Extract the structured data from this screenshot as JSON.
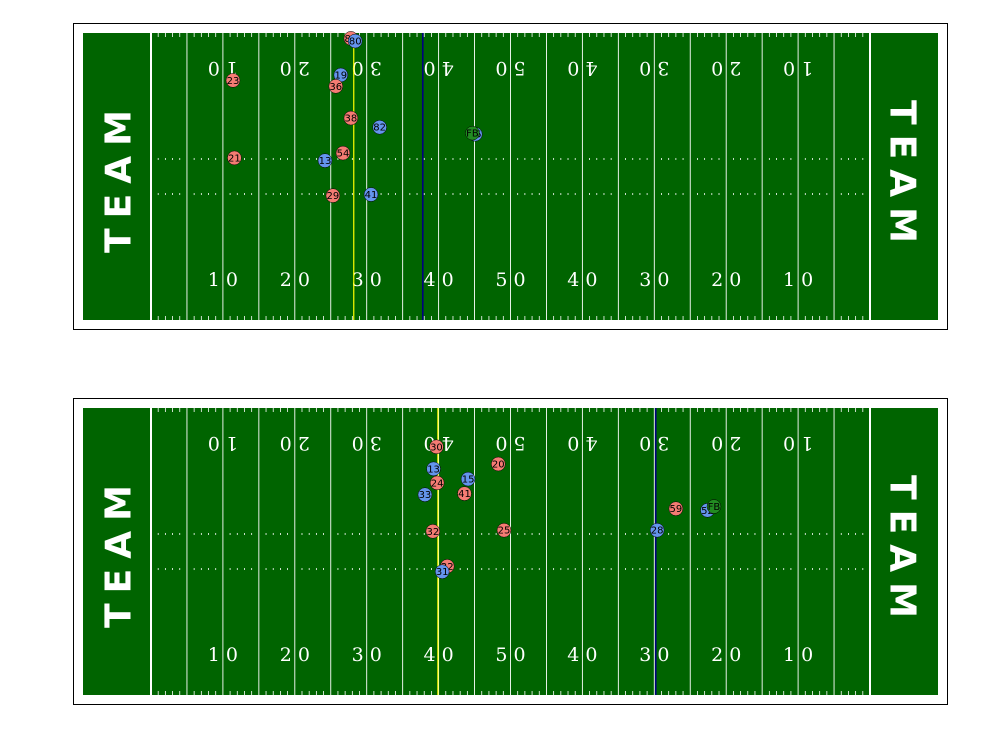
{
  "endzone_label": "TEAM",
  "colors": {
    "turf": "#006400",
    "lines": "#ffffff",
    "line_of_scrimmage": "#000080",
    "first_down": "#ffff00",
    "team_a": "#f47c73",
    "team_b": "#6495ed",
    "football": "#228b22"
  },
  "yard_numbers": [
    "1 0",
    "2 0",
    "3 0",
    "4 0",
    "5 0",
    "4 0",
    "3 0",
    "2 0",
    "1 0"
  ],
  "fields": [
    {
      "line_of_scrimmage": 37.8,
      "first_down": 28.2,
      "football": {
        "x": 44.7,
        "y": 18.6,
        "label": "FB"
      },
      "players": [
        {
          "team": "a",
          "jersey": "89",
          "x": 27.8,
          "y": 1.0
        },
        {
          "team": "b",
          "jersey": "80",
          "x": 28.4,
          "y": 1.5
        },
        {
          "team": "a",
          "jersey": "23",
          "x": 11.4,
          "y": 8.8
        },
        {
          "team": "b",
          "jersey": "19",
          "x": 26.4,
          "y": 7.8
        },
        {
          "team": "a",
          "jersey": "36",
          "x": 25.7,
          "y": 9.9
        },
        {
          "team": "a",
          "jersey": "38",
          "x": 27.8,
          "y": 15.8
        },
        {
          "team": "b",
          "jersey": "82",
          "x": 31.8,
          "y": 17.5
        },
        {
          "team": "b",
          "jersey": "15",
          "x": 45.1,
          "y": 18.8
        },
        {
          "team": "a",
          "jersey": "54",
          "x": 26.7,
          "y": 22.3
        },
        {
          "team": "a",
          "jersey": "21",
          "x": 11.6,
          "y": 23.2
        },
        {
          "team": "b",
          "jersey": "13",
          "x": 24.2,
          "y": 23.7
        },
        {
          "team": "a",
          "jersey": "29",
          "x": 25.3,
          "y": 30.2
        },
        {
          "team": "b",
          "jersey": "41",
          "x": 30.6,
          "y": 30.0
        }
      ]
    },
    {
      "line_of_scrimmage": 70.2,
      "first_down": 39.9,
      "football": {
        "x": 78.3,
        "y": 18.3,
        "label": "FB"
      },
      "players": [
        {
          "team": "a",
          "jersey": "30",
          "x": 39.7,
          "y": 7.2
        },
        {
          "team": "a",
          "jersey": "20",
          "x": 48.3,
          "y": 10.4
        },
        {
          "team": "b",
          "jersey": "13",
          "x": 39.3,
          "y": 11.3
        },
        {
          "team": "b",
          "jersey": "15",
          "x": 44.1,
          "y": 13.2
        },
        {
          "team": "a",
          "jersey": "24",
          "x": 39.8,
          "y": 13.9
        },
        {
          "team": "a",
          "jersey": "41",
          "x": 43.6,
          "y": 15.9
        },
        {
          "team": "b",
          "jersey": "33",
          "x": 38.1,
          "y": 16.1
        },
        {
          "team": "a",
          "jersey": "59",
          "x": 73.0,
          "y": 18.7
        },
        {
          "team": "b",
          "jersey": "52",
          "x": 77.4,
          "y": 19.0
        },
        {
          "team": "a",
          "jersey": "25",
          "x": 49.1,
          "y": 22.7
        },
        {
          "team": "a",
          "jersey": "32",
          "x": 39.2,
          "y": 22.9
        },
        {
          "team": "b",
          "jersey": "28",
          "x": 70.4,
          "y": 22.7
        },
        {
          "team": "a",
          "jersey": "22",
          "x": 41.2,
          "y": 29.4
        },
        {
          "team": "b",
          "jersey": "31",
          "x": 40.5,
          "y": 30.4
        }
      ]
    }
  ]
}
